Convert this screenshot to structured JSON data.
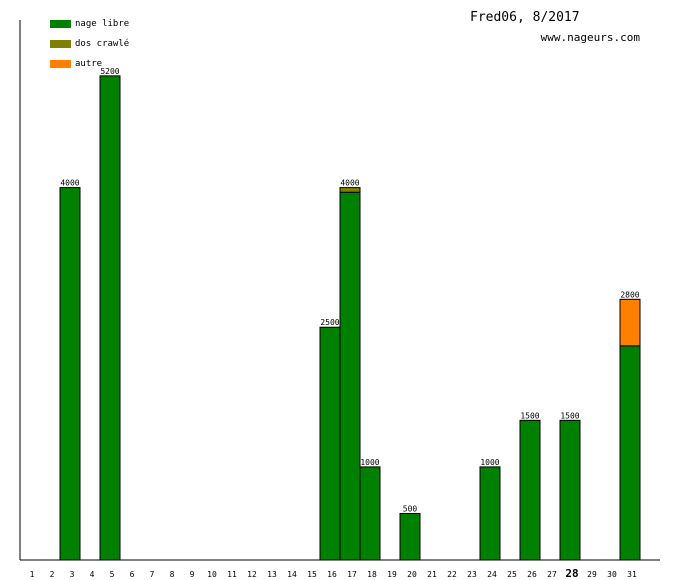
{
  "header": {
    "title": "Fred06, 8/2017",
    "site": "www.nageurs.com"
  },
  "legend": [
    {
      "label": "nage libre",
      "color": "#008000"
    },
    {
      "label": "dos crawlé",
      "color": "#808000"
    },
    {
      "label": "autre",
      "color": "#ff8000"
    }
  ],
  "chart_data": {
    "type": "bar",
    "stacked": true,
    "categories": [
      "1",
      "2",
      "3",
      "4",
      "5",
      "6",
      "7",
      "8",
      "9",
      "10",
      "11",
      "12",
      "13",
      "14",
      "15",
      "16",
      "17",
      "18",
      "19",
      "20",
      "21",
      "22",
      "23",
      "24",
      "25",
      "26",
      "27",
      "28",
      "29",
      "30",
      "31"
    ],
    "highlight_category": "28",
    "ylim": [
      0,
      5800
    ],
    "grid": false,
    "legend_position": "top-left",
    "series": [
      {
        "name": "nage libre",
        "color": "#008000",
        "values": [
          0,
          0,
          4000,
          0,
          5200,
          0,
          0,
          0,
          0,
          0,
          0,
          0,
          0,
          0,
          0,
          2500,
          3950,
          1000,
          0,
          500,
          0,
          0,
          0,
          1000,
          0,
          1500,
          0,
          1500,
          0,
          0,
          2300
        ]
      },
      {
        "name": "dos crawlé",
        "color": "#808000",
        "values": [
          0,
          0,
          0,
          0,
          0,
          0,
          0,
          0,
          0,
          0,
          0,
          0,
          0,
          0,
          0,
          0,
          50,
          0,
          0,
          0,
          0,
          0,
          0,
          0,
          0,
          0,
          0,
          0,
          0,
          0,
          0
        ]
      },
      {
        "name": "autre",
        "color": "#ff8000",
        "values": [
          0,
          0,
          0,
          0,
          0,
          0,
          0,
          0,
          0,
          0,
          0,
          0,
          0,
          0,
          0,
          0,
          0,
          0,
          0,
          0,
          0,
          0,
          0,
          0,
          0,
          0,
          0,
          0,
          0,
          0,
          500
        ]
      }
    ],
    "totals": [
      0,
      0,
      4000,
      0,
      5200,
      0,
      0,
      0,
      0,
      0,
      0,
      0,
      0,
      0,
      0,
      2500,
      4000,
      1000,
      0,
      500,
      0,
      0,
      0,
      1000,
      0,
      1500,
      0,
      1500,
      0,
      0,
      2800
    ]
  }
}
